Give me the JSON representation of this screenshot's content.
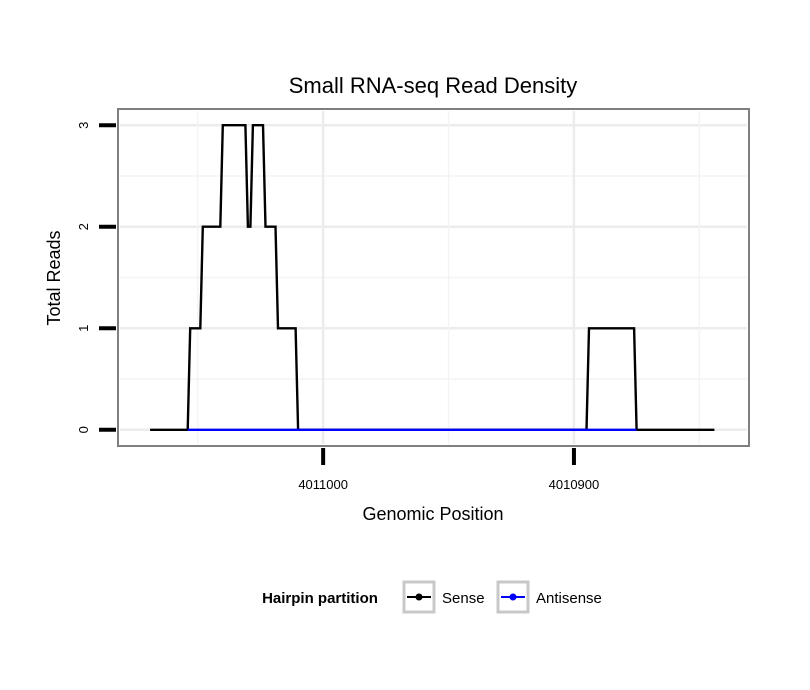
{
  "chart_data": {
    "type": "line",
    "title": "Small RNA-seq Read Density",
    "xlabel": "Genomic Position",
    "ylabel": "Total Reads",
    "x_reversed": true,
    "xlim": [
      4011081,
      4010831
    ],
    "ylim": [
      -0.14,
      3.14
    ],
    "x_ticks": [
      4011000,
      4010900
    ],
    "x_tick_labels": [
      "4011000",
      "4010900"
    ],
    "y_ticks": [
      0,
      1,
      2,
      3
    ],
    "y_tick_labels": [
      "0",
      "1",
      "2",
      "3"
    ],
    "grid": true,
    "legend": {
      "title": "Hairpin partition",
      "placement": "bottom",
      "entries": [
        "Sense",
        "Antisense"
      ]
    },
    "series": [
      {
        "name": "Sense",
        "color": "#000000",
        "x": [
          4011069,
          4011054,
          4011053,
          4011049,
          4011048,
          4011041,
          4011040,
          4011034,
          4011033,
          4011031,
          4011030,
          4011029,
          4011028,
          4011024,
          4011023,
          4011019,
          4011018,
          4011011,
          4011010,
          4011008,
          4011007,
          4010984,
          4010962,
          4010962,
          4010961,
          4010940,
          4010919,
          4010918,
          4010900,
          4010895,
          4010894,
          4010876,
          4010875,
          4010844
        ],
        "y": [
          0,
          0,
          1,
          1,
          2,
          2,
          3,
          3,
          3,
          3,
          2,
          2,
          3,
          3,
          2,
          2,
          1,
          1,
          0,
          0,
          0,
          0,
          0,
          0,
          0,
          0,
          0,
          0,
          0,
          0,
          1,
          1,
          0,
          0
        ]
      },
      {
        "name": "Antisense",
        "color": "#0000ff",
        "x": [
          4011054,
          4011008,
          4010894,
          4010875
        ],
        "y": [
          0,
          0,
          0,
          0
        ]
      }
    ]
  }
}
